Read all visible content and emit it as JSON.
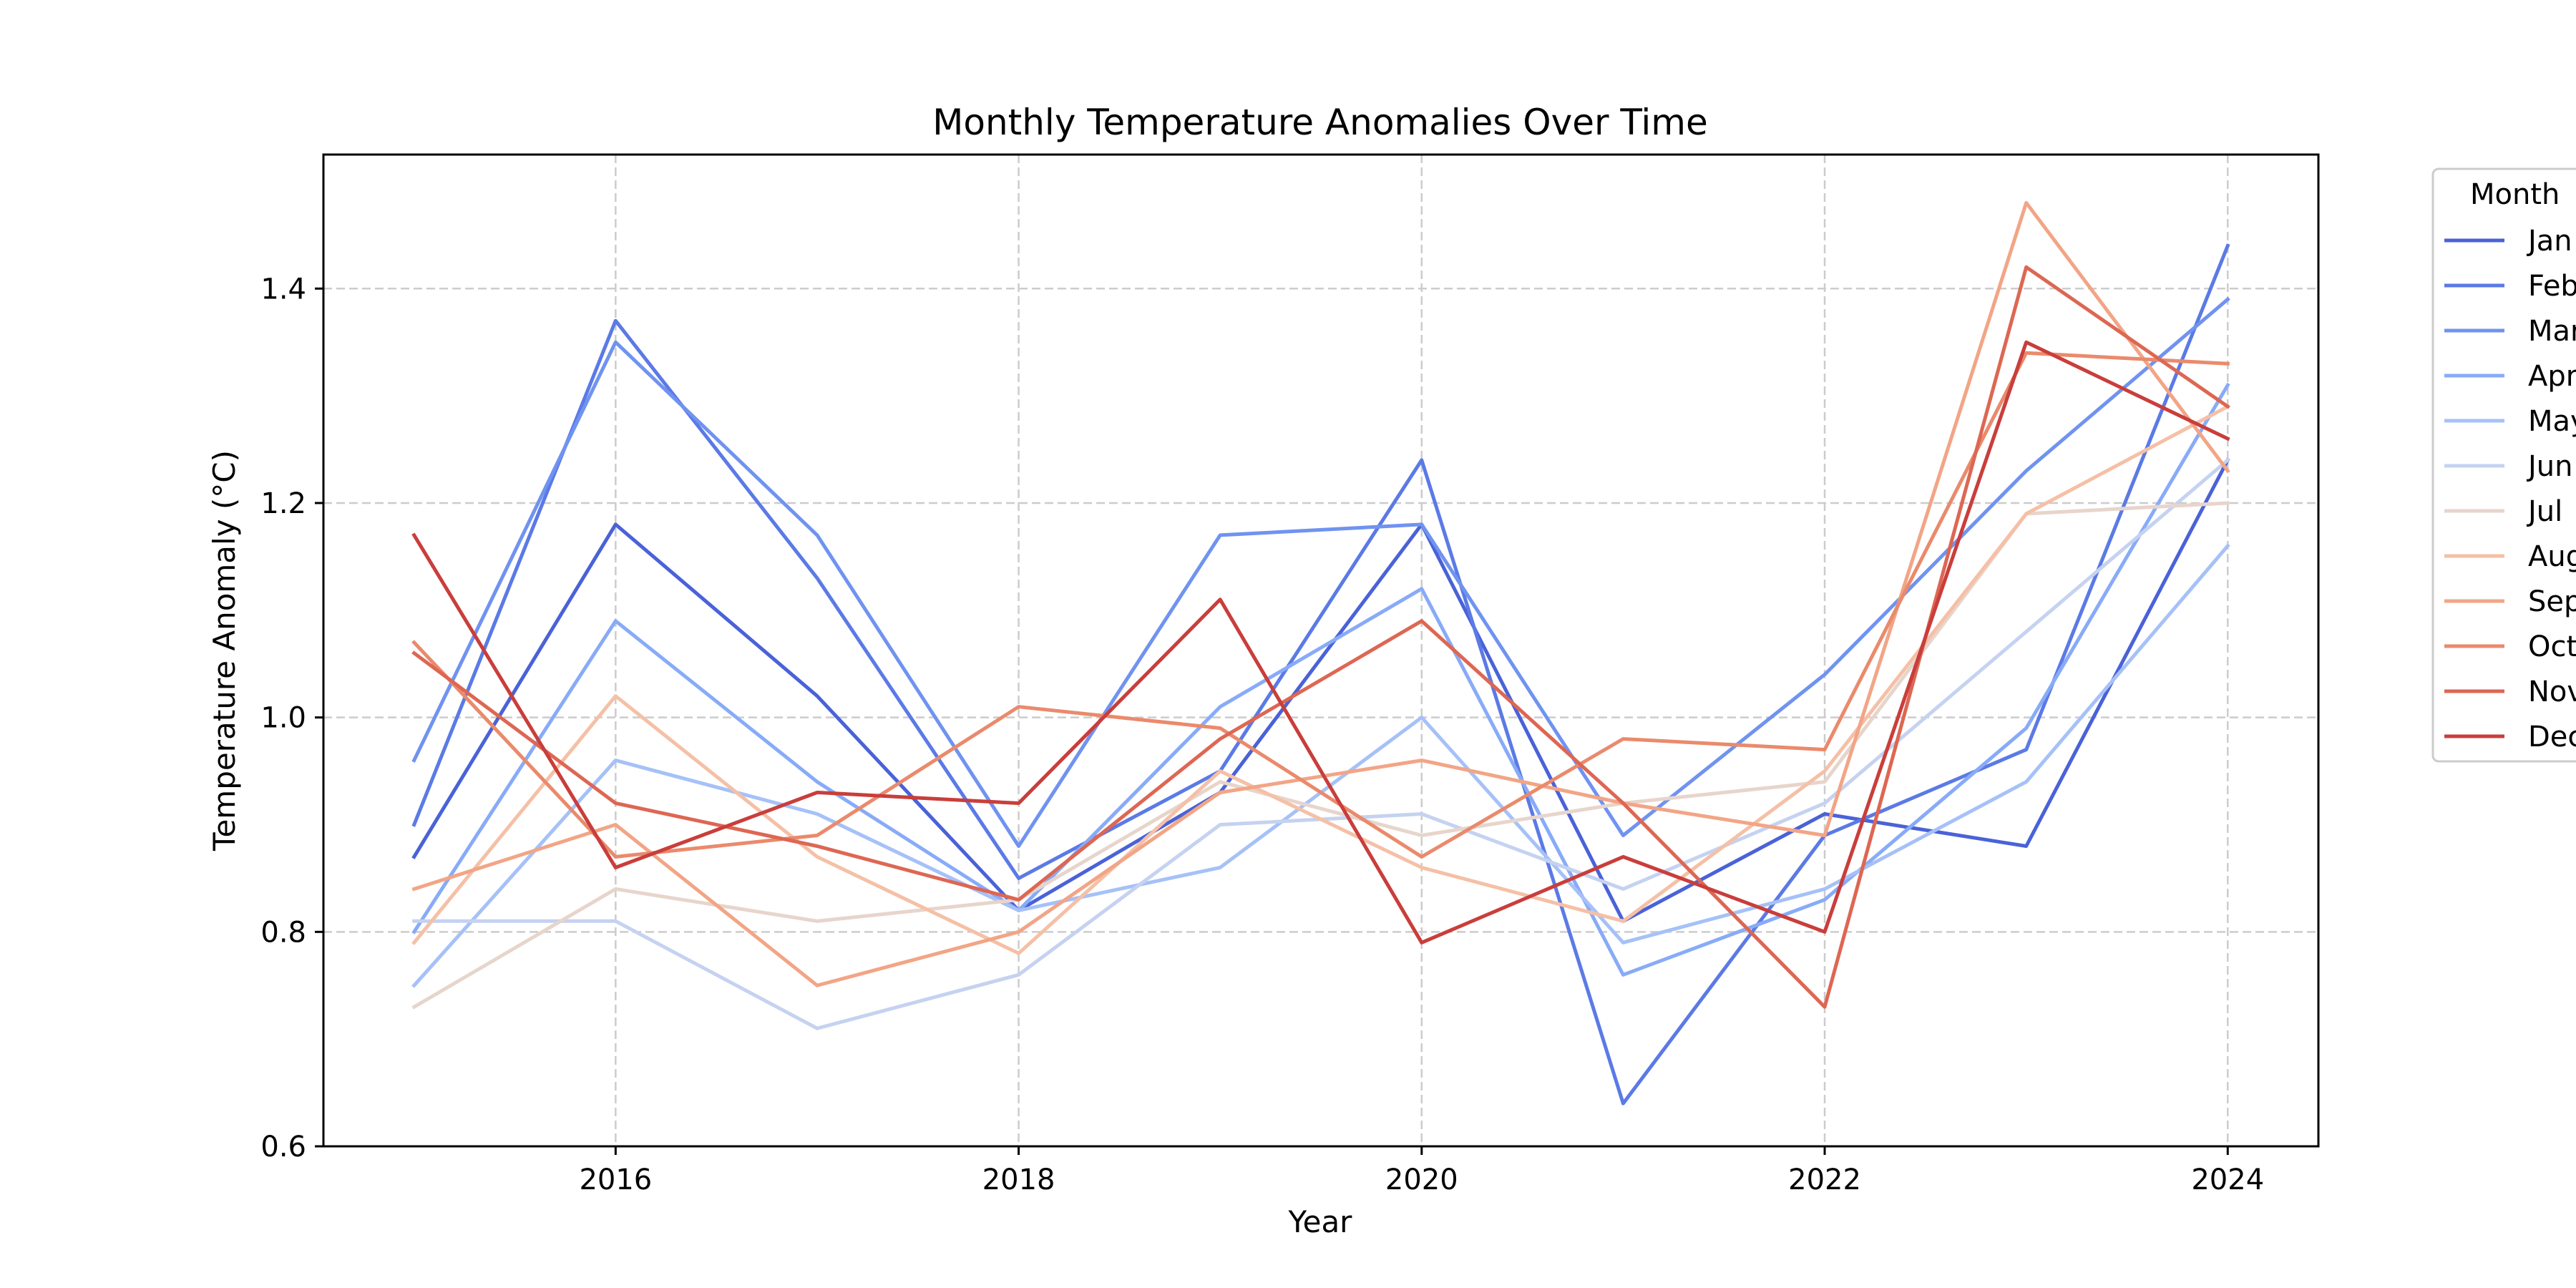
{
  "chart_data": {
    "type": "line",
    "title": "Monthly Temperature Anomalies Over Time",
    "xlabel": "Year",
    "ylabel": "Temperature Anomaly (°C)",
    "x": [
      2015,
      2016,
      2017,
      2018,
      2019,
      2020,
      2021,
      2022,
      2023,
      2024
    ],
    "xlim": [
      2014.55,
      2024.45
    ],
    "ylim": [
      0.6,
      1.525
    ],
    "xticks": [
      2016,
      2018,
      2020,
      2022,
      2024
    ],
    "xtick_labels": [
      "2016",
      "2018",
      "2020",
      "2022",
      "2024"
    ],
    "yticks": [
      0.6,
      0.8,
      1.0,
      1.2,
      1.4
    ],
    "ytick_labels": [
      "0.6",
      "0.8",
      "1.0",
      "1.2",
      "1.4"
    ],
    "grid": true,
    "legend": {
      "title": "Month",
      "placement": "outside-right-top"
    },
    "series": [
      {
        "name": "Jan",
        "color": "#4a62d8",
        "values": [
          0.87,
          1.18,
          1.02,
          0.82,
          0.93,
          1.18,
          0.81,
          0.91,
          0.88,
          1.24
        ]
      },
      {
        "name": "Feb",
        "color": "#5b7ae6",
        "values": [
          0.9,
          1.37,
          1.13,
          0.85,
          0.95,
          1.24,
          0.64,
          0.89,
          0.97,
          1.44
        ]
      },
      {
        "name": "Mar",
        "color": "#7093f0",
        "values": [
          0.96,
          1.35,
          1.17,
          0.88,
          1.17,
          1.18,
          0.89,
          1.04,
          1.23,
          1.39
        ]
      },
      {
        "name": "Apr",
        "color": "#88abf8",
        "values": [
          0.8,
          1.09,
          0.94,
          0.82,
          1.01,
          1.12,
          0.76,
          0.83,
          0.99,
          1.31
        ]
      },
      {
        "name": "May",
        "color": "#a6c1f8",
        "values": [
          0.75,
          0.96,
          0.91,
          0.82,
          0.86,
          1.0,
          0.79,
          0.84,
          0.94,
          1.16
        ]
      },
      {
        "name": "Jun",
        "color": "#c5d2f0",
        "values": [
          0.81,
          0.81,
          0.71,
          0.76,
          0.9,
          0.91,
          0.84,
          0.92,
          1.08,
          1.24
        ]
      },
      {
        "name": "Jul",
        "color": "#e7d5cc",
        "values": [
          0.73,
          0.84,
          0.81,
          0.83,
          0.94,
          0.89,
          0.92,
          0.94,
          1.19,
          1.2
        ]
      },
      {
        "name": "Aug",
        "color": "#f5c0a6",
        "values": [
          0.79,
          1.02,
          0.87,
          0.78,
          0.95,
          0.86,
          0.81,
          0.95,
          1.19,
          1.29
        ]
      },
      {
        "name": "Sep",
        "color": "#f2a586",
        "values": [
          0.84,
          0.9,
          0.75,
          0.8,
          0.93,
          0.96,
          0.92,
          0.89,
          1.48,
          1.23
        ]
      },
      {
        "name": "Oct",
        "color": "#ea8a6c",
        "values": [
          1.07,
          0.87,
          0.89,
          1.01,
          0.99,
          0.87,
          0.98,
          0.97,
          1.34,
          1.33
        ]
      },
      {
        "name": "Nov",
        "color": "#dd6753",
        "values": [
          1.06,
          0.92,
          0.88,
          0.83,
          0.98,
          1.09,
          0.92,
          0.73,
          1.42,
          1.29
        ]
      },
      {
        "name": "Dec",
        "color": "#c93e3b",
        "values": [
          1.17,
          0.86,
          0.93,
          0.92,
          1.11,
          0.79,
          0.87,
          0.8,
          1.35,
          1.26
        ]
      }
    ]
  }
}
